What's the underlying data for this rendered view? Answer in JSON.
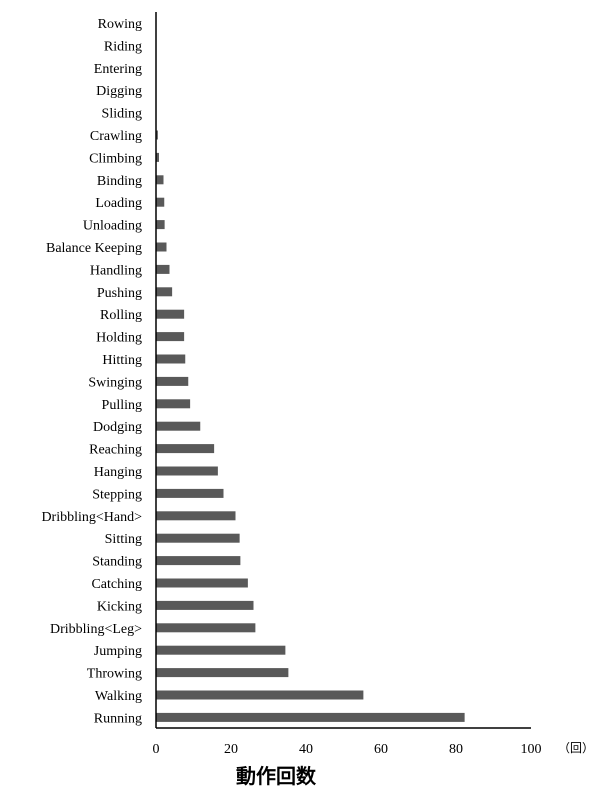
{
  "chart_data": {
    "type": "bar",
    "orientation": "horizontal",
    "title": "",
    "xlabel": "動作回数",
    "x_unit": "（回）",
    "ylabel": "",
    "xlim": [
      0,
      100
    ],
    "xticks": [
      0,
      20,
      40,
      60,
      80,
      100
    ],
    "grid": false,
    "legend": "none",
    "bar_color": "#595959",
    "categories": [
      "Rowing",
      "Riding",
      "Entering",
      "Digging",
      "Sliding",
      "Crawling",
      "Climbing",
      "Binding",
      "Loading",
      "Unloading",
      "Balance Keeping",
      "Handling",
      "Pushing",
      "Rolling",
      "Holding",
      "Hitting",
      "Swinging",
      "Pulling",
      "Dodging",
      "Reaching",
      "Hanging",
      "Stepping",
      "Dribbling<Hand>",
      "Sitting",
      "Standing",
      "Catching",
      "Kicking",
      "Dribbling<Leg>",
      "Jumping",
      "Throwing",
      "Walking",
      "Running"
    ],
    "values": [
      0,
      0,
      0,
      0,
      0,
      0.5,
      0.8,
      2,
      2.2,
      2.3,
      2.8,
      3.6,
      4.3,
      7.5,
      7.5,
      7.8,
      8.6,
      9.1,
      11.8,
      15.5,
      16.5,
      18,
      21.2,
      22.3,
      22.5,
      24.5,
      26,
      26.5,
      34.5,
      35.3,
      55.3,
      82.3
    ]
  }
}
